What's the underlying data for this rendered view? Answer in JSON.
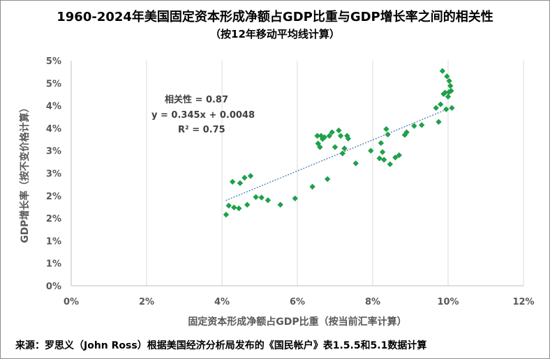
{
  "chart_data": {
    "type": "scatter",
    "title": "1960-2024年美国固定资本形成净额占GDP比重与GDP增长率之间的相关性",
    "subtitle": "（按12年移动平均线计算）",
    "xlabel": "固定资本形成净额占GDP比重（按当前汇率计算）",
    "ylabel": "GDP增长率（按不变价格计算）",
    "xlim": [
      0,
      0.12
    ],
    "ylim": [
      0,
      0.05
    ],
    "x_ticks": [
      0,
      0.02,
      0.04,
      0.06,
      0.08,
      0.1,
      0.12
    ],
    "x_tick_labels": [
      "0%",
      "2%",
      "4%",
      "6%",
      "8%",
      "10%",
      "12%"
    ],
    "y_ticks": [
      0,
      0.005,
      0.01,
      0.015,
      0.02,
      0.025,
      0.03,
      0.035,
      0.04,
      0.045,
      0.05
    ],
    "y_tick_labels": [
      "0%",
      "1%",
      "1%",
      "2%",
      "2%",
      "3%",
      "3%",
      "4%",
      "4%",
      "5%",
      "5%"
    ],
    "grid": {
      "vertical": true,
      "horizontal": false
    },
    "marker_color": "#1fa04a",
    "trendline_color": "#4a78b5",
    "annotations": [
      "相关性 = 0.87",
      "y = 0.345x + 0.0048",
      "R² = 0.75"
    ],
    "trendline": {
      "slope": 0.345,
      "intercept": 0.0048,
      "x_range": [
        0.041,
        0.1
      ]
    },
    "points": [
      [
        0.0411,
        0.0158
      ],
      [
        0.0418,
        0.0178
      ],
      [
        0.0428,
        0.0231
      ],
      [
        0.0432,
        0.0174
      ],
      [
        0.0445,
        0.0172
      ],
      [
        0.0448,
        0.0228
      ],
      [
        0.046,
        0.024
      ],
      [
        0.0467,
        0.018
      ],
      [
        0.0476,
        0.0244
      ],
      [
        0.049,
        0.0197
      ],
      [
        0.0505,
        0.0196
      ],
      [
        0.0522,
        0.019
      ],
      [
        0.0555,
        0.018
      ],
      [
        0.0594,
        0.0194
      ],
      [
        0.064,
        0.022
      ],
      [
        0.0653,
        0.0333
      ],
      [
        0.0655,
        0.0316
      ],
      [
        0.066,
        0.0308
      ],
      [
        0.0663,
        0.0333
      ],
      [
        0.0667,
        0.0326
      ],
      [
        0.0672,
        0.033
      ],
      [
        0.068,
        0.0237
      ],
      [
        0.0685,
        0.0333
      ],
      [
        0.0692,
        0.0341
      ],
      [
        0.07,
        0.0308
      ],
      [
        0.071,
        0.0345
      ],
      [
        0.0715,
        0.0333
      ],
      [
        0.072,
        0.0294
      ],
      [
        0.0725,
        0.0305
      ],
      [
        0.0732,
        0.0333
      ],
      [
        0.0735,
        0.0327
      ],
      [
        0.0755,
        0.0272
      ],
      [
        0.0795,
        0.03
      ],
      [
        0.0818,
        0.0283
      ],
      [
        0.0822,
        0.0317
      ],
      [
        0.0826,
        0.0297
      ],
      [
        0.083,
        0.028
      ],
      [
        0.0836,
        0.0348
      ],
      [
        0.084,
        0.0336
      ],
      [
        0.0846,
        0.027
      ],
      [
        0.086,
        0.0285
      ],
      [
        0.087,
        0.029
      ],
      [
        0.0885,
        0.0335
      ],
      [
        0.089,
        0.0341
      ],
      [
        0.091,
        0.0355
      ],
      [
        0.093,
        0.0357
      ],
      [
        0.0968,
        0.0395
      ],
      [
        0.0975,
        0.0364
      ],
      [
        0.098,
        0.0403
      ],
      [
        0.0985,
        0.0477
      ],
      [
        0.0988,
        0.0426
      ],
      [
        0.0992,
        0.0429
      ],
      [
        0.0995,
        0.0392
      ],
      [
        0.0997,
        0.0465
      ],
      [
        0.1,
        0.042
      ],
      [
        0.1002,
        0.043
      ],
      [
        0.1003,
        0.0455
      ],
      [
        0.1006,
        0.0444
      ],
      [
        0.1008,
        0.0433
      ],
      [
        0.101,
        0.0395
      ]
    ]
  },
  "source_note": "来源：罗思义（John Ross）根据美国经济分析局发布的《国民帐户》表1.5.5和5.1数据计算"
}
